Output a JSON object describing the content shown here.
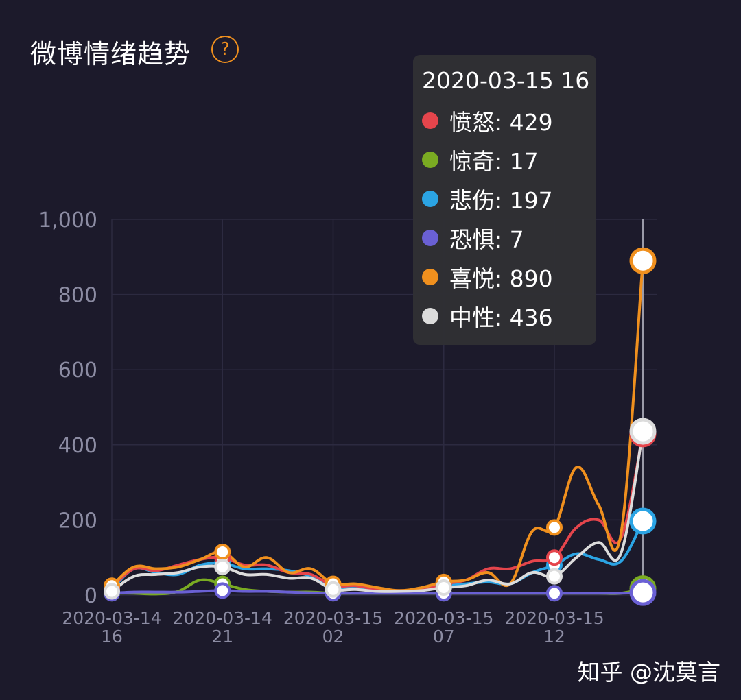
{
  "header": {
    "title": "微博情绪趋势",
    "help_icon": "question-circle-icon",
    "help_symbol": "?"
  },
  "tooltip": {
    "title": "2020-03-15 16",
    "rows": [
      {
        "label": "愤怒",
        "value": 429,
        "color": "#e5454c"
      },
      {
        "label": "惊奇",
        "value": 17,
        "color": "#7aab22"
      },
      {
        "label": "悲伤",
        "value": 197,
        "color": "#2ba4e4"
      },
      {
        "label": "恐惧",
        "value": 7,
        "color": "#6a60d4"
      },
      {
        "label": "喜悦",
        "value": 890,
        "color": "#f0901e"
      },
      {
        "label": "中性",
        "value": 436,
        "color": "#dcdcdc"
      }
    ]
  },
  "watermark": "知乎 @沈莫言",
  "chart_data": {
    "type": "line",
    "title": "微博情绪趋势",
    "ylim": [
      0,
      1000
    ],
    "yticks": [
      "0",
      "200",
      "400",
      "600",
      "800",
      "1,000"
    ],
    "ytick_values": [
      0,
      200,
      400,
      600,
      800,
      1000
    ],
    "xtick_labels": [
      [
        "2020-03-14",
        "16"
      ],
      [
        "2020-03-14",
        "21"
      ],
      [
        "2020-03-15",
        "02"
      ],
      [
        "2020-03-15",
        "07"
      ],
      [
        "2020-03-15",
        "12"
      ]
    ],
    "xlim": [
      0,
      24
    ],
    "xtick_positions": [
      0,
      5,
      10,
      15,
      20
    ],
    "grid": true,
    "selected_x": 24,
    "marker_x": [
      0,
      5,
      10,
      15,
      20,
      24
    ],
    "series": [
      {
        "name": "愤怒",
        "color": "#e5454c",
        "x": [
          0,
          1,
          2,
          3,
          4,
          5,
          6,
          7,
          8,
          9,
          10,
          11,
          12,
          13,
          14,
          15,
          16,
          17,
          18,
          19,
          20,
          21,
          22,
          23,
          24
        ],
        "values": [
          20,
          70,
          65,
          80,
          95,
          100,
          80,
          80,
          60,
          55,
          25,
          25,
          15,
          12,
          15,
          30,
          40,
          70,
          70,
          90,
          100,
          180,
          200,
          150,
          429
        ]
      },
      {
        "name": "惊奇",
        "color": "#7aab22",
        "x": [
          0,
          1,
          2,
          3,
          4,
          5,
          6,
          7,
          8,
          9,
          10,
          11,
          12,
          13,
          14,
          15,
          16,
          17,
          18,
          19,
          20,
          21,
          22,
          23,
          24
        ],
        "values": [
          5,
          5,
          3,
          10,
          40,
          30,
          15,
          10,
          8,
          8,
          5,
          5,
          5,
          5,
          5,
          5,
          5,
          5,
          5,
          5,
          5,
          5,
          5,
          5,
          17
        ]
      },
      {
        "name": "悲伤",
        "color": "#2ba4e4",
        "x": [
          0,
          1,
          2,
          3,
          4,
          5,
          6,
          7,
          8,
          9,
          10,
          11,
          12,
          13,
          14,
          15,
          16,
          17,
          18,
          19,
          20,
          21,
          22,
          23,
          24
        ],
        "values": [
          15,
          70,
          60,
          55,
          80,
          85,
          70,
          70,
          65,
          50,
          20,
          18,
          12,
          12,
          12,
          25,
          30,
          35,
          30,
          60,
          80,
          110,
          95,
          90,
          197
        ]
      },
      {
        "name": "恐惧",
        "color": "#6a60d4",
        "x": [
          0,
          1,
          2,
          3,
          4,
          5,
          6,
          7,
          8,
          9,
          10,
          11,
          12,
          13,
          14,
          15,
          16,
          17,
          18,
          19,
          20,
          21,
          22,
          23,
          24
        ],
        "values": [
          5,
          8,
          8,
          8,
          10,
          12,
          10,
          10,
          8,
          6,
          5,
          5,
          5,
          5,
          5,
          5,
          5,
          5,
          5,
          5,
          5,
          5,
          5,
          5,
          7
        ]
      },
      {
        "name": "喜悦",
        "color": "#f0901e",
        "x": [
          0,
          1,
          2,
          3,
          4,
          5,
          6,
          7,
          8,
          9,
          10,
          11,
          12,
          13,
          14,
          15,
          16,
          17,
          18,
          19,
          20,
          21,
          22,
          23,
          24
        ],
        "values": [
          25,
          75,
          70,
          75,
          95,
          115,
          75,
          100,
          60,
          70,
          30,
          30,
          20,
          12,
          20,
          35,
          40,
          60,
          30,
          170,
          180,
          340,
          240,
          160,
          890
        ]
      },
      {
        "name": "中性",
        "color": "#dcdcdc",
        "x": [
          0,
          1,
          2,
          3,
          4,
          5,
          6,
          7,
          8,
          9,
          10,
          11,
          12,
          13,
          14,
          15,
          16,
          17,
          18,
          19,
          20,
          21,
          22,
          23,
          24
        ],
        "values": [
          10,
          50,
          55,
          60,
          75,
          75,
          55,
          55,
          45,
          45,
          15,
          15,
          10,
          10,
          12,
          20,
          25,
          40,
          30,
          60,
          50,
          100,
          140,
          110,
          436
        ]
      }
    ]
  }
}
